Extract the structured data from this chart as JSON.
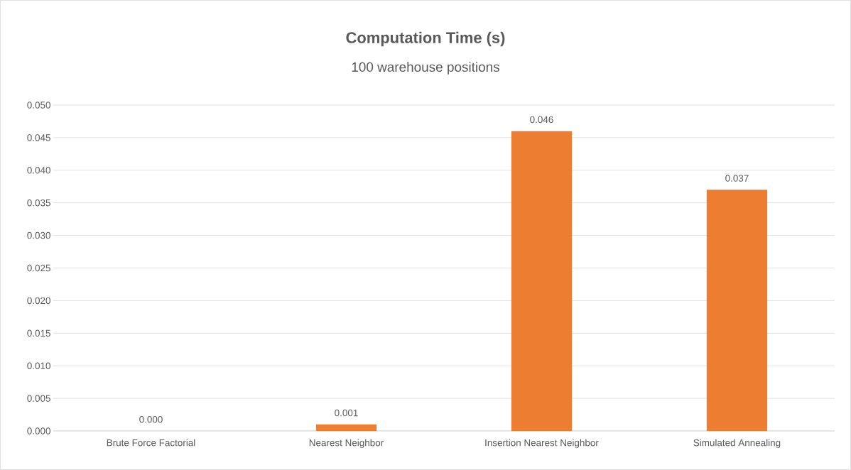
{
  "chart_data": {
    "type": "bar",
    "title": "Computation Time (s)",
    "subtitle": "100 warehouse positions",
    "categories": [
      "Brute Force Factorial",
      "Nearest Neighbor",
      "Insertion Nearest Neighbor",
      "Simulated Annealing"
    ],
    "values": [
      0,
      0.001,
      0.046,
      0.037
    ],
    "value_labels": [
      "0.000",
      "0.001",
      "0.046",
      "0.037"
    ],
    "color": "#ed7d31",
    "ylim": [
      0,
      0.05
    ],
    "yticks": [
      {
        "value": 0,
        "label": "0.000"
      },
      {
        "value": 0.005,
        "label": "0.005"
      },
      {
        "value": 0.01,
        "label": "0.010"
      },
      {
        "value": 0.015,
        "label": "0.015"
      },
      {
        "value": 0.02,
        "label": "0.020"
      },
      {
        "value": 0.025,
        "label": "0.025"
      },
      {
        "value": 0.03,
        "label": "0.030"
      },
      {
        "value": 0.035,
        "label": "0.035"
      },
      {
        "value": 0.04,
        "label": "0.040"
      },
      {
        "value": 0.045,
        "label": "0.045"
      },
      {
        "value": 0.05,
        "label": "0.050"
      }
    ],
    "grid": "y"
  }
}
